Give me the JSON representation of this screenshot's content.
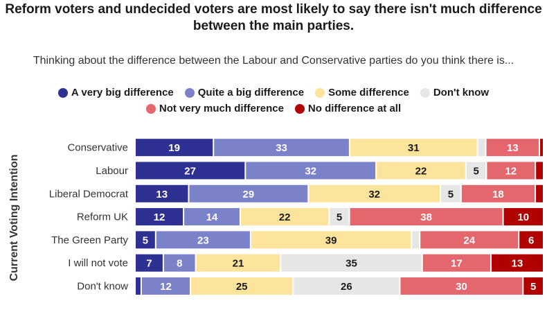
{
  "title": "Reform voters and undecided voters are most likely to say there isn't much difference between the main parties.",
  "subtitle": "Thinking about the difference between the Labour and Conservative parties do you think there is...",
  "ylabel": "Current Voting Intention",
  "chart_data": {
    "type": "bar",
    "orientation": "horizontal",
    "stacked": true,
    "xlim": [
      0,
      100
    ],
    "categories": [
      "Conservative",
      "Labour",
      "Liberal Democrat",
      "Reform UK",
      "The Green Party",
      "I will not vote",
      "Don't know"
    ],
    "series": [
      {
        "name": "A very big difference",
        "color": "#2e3192",
        "label_color": "#ffffff",
        "values": [
          19,
          27,
          13,
          12,
          5,
          7,
          1.5
        ],
        "labels": [
          "19",
          "27",
          "13",
          "12",
          "5",
          "7",
          ""
        ]
      },
      {
        "name": "Quite a big difference",
        "color": "#7b82c9",
        "label_color": "#ffffff",
        "values": [
          33,
          32,
          29,
          14,
          23,
          8,
          12
        ],
        "labels": [
          "33",
          "32",
          "29",
          "14",
          "23",
          "8",
          "12"
        ]
      },
      {
        "name": "Some difference",
        "color": "#fde49c",
        "label_color": "#1a1a1a",
        "values": [
          31,
          22,
          32,
          22,
          39,
          21,
          25
        ],
        "labels": [
          "31",
          "22",
          "32",
          "22",
          "39",
          "21",
          "25"
        ]
      },
      {
        "name": "Don't know",
        "color": "#e6e6e6",
        "label_color": "#1a1a1a",
        "values": [
          2,
          5,
          5,
          5,
          2,
          35,
          26
        ],
        "labels": [
          "",
          "5",
          "5",
          "5",
          "",
          "35",
          "26"
        ]
      },
      {
        "name": "Not very much difference",
        "color": "#e3676c",
        "label_color": "#ffffff",
        "values": [
          13,
          12,
          18,
          38,
          24,
          17,
          30
        ],
        "labels": [
          "13",
          "12",
          "18",
          "38",
          "24",
          "17",
          "30"
        ]
      },
      {
        "name": "No difference at all",
        "color": "#b00000",
        "label_color": "#ffffff",
        "values": [
          1,
          2,
          2,
          10,
          6,
          13,
          5
        ],
        "labels": [
          "",
          "",
          "",
          "10",
          "6",
          "13",
          "5"
        ]
      }
    ],
    "legend_rows": [
      [
        0,
        1,
        2,
        3
      ],
      [
        4,
        5
      ]
    ]
  }
}
